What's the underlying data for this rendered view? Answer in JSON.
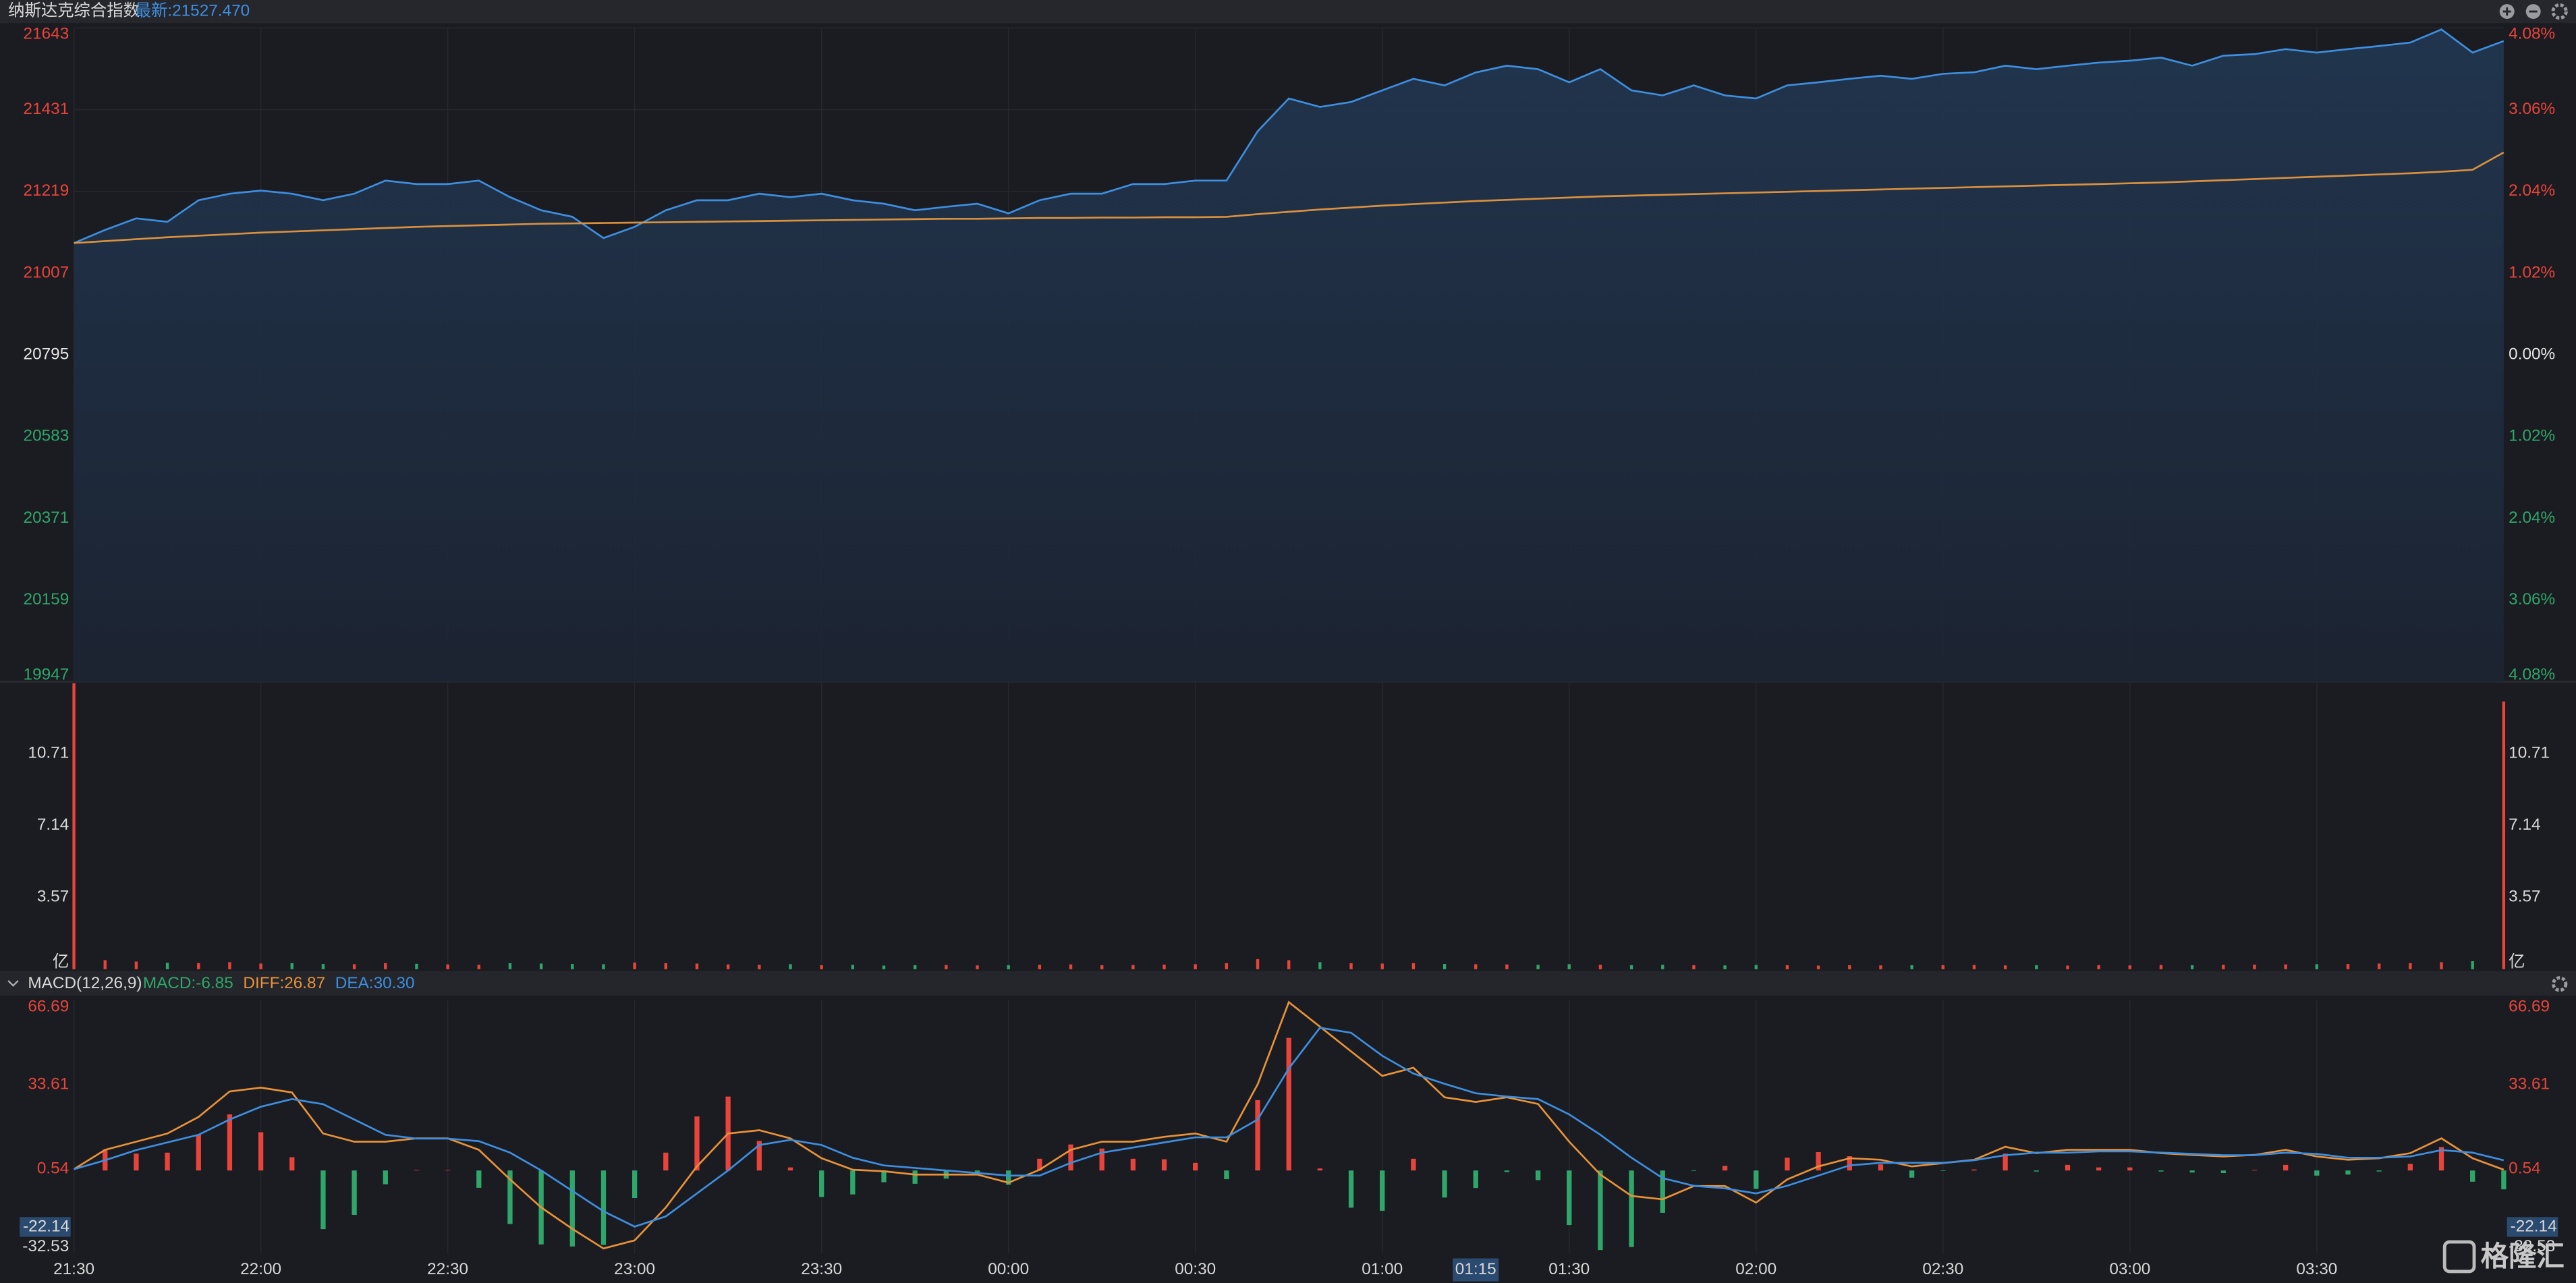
{
  "watermark": "格隆汇",
  "chart_data": [
    {
      "type": "area",
      "title": "纳斯达克综合指数",
      "latest": "最新:21527.470",
      "x": [
        "21:30",
        "21:35",
        "21:40",
        "21:45",
        "21:50",
        "21:55",
        "22:00",
        "22:05",
        "22:10",
        "22:15",
        "22:20",
        "22:25",
        "22:30",
        "22:35",
        "22:40",
        "22:45",
        "22:50",
        "22:55",
        "23:00",
        "23:05",
        "23:10",
        "23:15",
        "23:20",
        "23:25",
        "23:30",
        "23:35",
        "23:40",
        "23:45",
        "23:50",
        "23:55",
        "00:00",
        "00:05",
        "00:10",
        "00:15",
        "00:20",
        "00:25",
        "00:30",
        "00:35",
        "00:40",
        "00:45",
        "00:50",
        "00:55",
        "01:00",
        "01:05",
        "01:10",
        "01:15",
        "01:20",
        "01:25",
        "01:30",
        "01:35",
        "01:40",
        "01:45",
        "01:50",
        "01:55",
        "02:00",
        "02:05",
        "02:10",
        "02:15",
        "02:20",
        "02:25",
        "02:30",
        "02:35",
        "02:40",
        "02:45",
        "02:50",
        "02:55",
        "03:00",
        "03:05",
        "03:10",
        "03:15",
        "03:20",
        "03:25",
        "03:30",
        "03:35",
        "03:40",
        "03:45",
        "03:50",
        "03:55",
        "04:00"
      ],
      "series": [
        {
          "color": "#3e8ee0",
          "values": [
            21085,
            21119,
            21149,
            21140,
            21196,
            21213,
            21221,
            21213,
            21196,
            21213,
            21247,
            21238,
            21238,
            21247,
            21204,
            21170,
            21153,
            21098,
            21127,
            21170,
            21196,
            21196,
            21213,
            21204,
            21213,
            21196,
            21187,
            21170,
            21179,
            21187,
            21162,
            21196,
            21213,
            21213,
            21238,
            21238,
            21247,
            21247,
            21375,
            21460,
            21438,
            21451,
            21481,
            21511,
            21494,
            21527.47,
            21545,
            21536,
            21502,
            21536,
            21481,
            21468,
            21494,
            21468,
            21460,
            21494,
            21502,
            21511,
            21519,
            21511,
            21524,
            21528,
            21545,
            21536,
            21545,
            21553,
            21558,
            21566,
            21545,
            21571,
            21575,
            21588,
            21579,
            21588,
            21596,
            21605,
            21639,
            21579,
            21609
          ]
        },
        {
          "color": "#d9913f",
          "values": [
            21085,
            21090,
            21095,
            21100,
            21104,
            21108,
            21112,
            21115,
            21118,
            21121,
            21124,
            21127,
            21129,
            21131,
            21133,
            21135,
            21136,
            21137,
            21138,
            21139,
            21140,
            21141,
            21142,
            21143,
            21144,
            21145,
            21146,
            21147,
            21148,
            21148,
            21149,
            21150,
            21150,
            21151,
            21151,
            21152,
            21152,
            21153,
            21160,
            21166,
            21172,
            21177,
            21182,
            21186,
            21190,
            21194,
            21197,
            21200,
            21203,
            21206,
            21208,
            21210,
            21212,
            21214,
            21216,
            21218,
            21220,
            21222,
            21224,
            21226,
            21228,
            21230,
            21232,
            21234,
            21236,
            21238,
            21240,
            21242,
            21245,
            21248,
            21251,
            21254,
            21257,
            21260,
            21263,
            21266,
            21270,
            21275,
            21320
          ]
        }
      ],
      "ylim": [
        19947,
        21643
      ],
      "yticks": [
        21643,
        21431,
        21219,
        21007,
        20795,
        20583,
        20371,
        20159,
        19947
      ],
      "y2lim": [
        -4.08,
        4.08
      ],
      "y2ticks": [
        {
          "value": 4.08,
          "label": "4.08%"
        },
        {
          "value": 3.06,
          "label": "3.06%"
        },
        {
          "value": 2.04,
          "label": "2.04%"
        },
        {
          "value": 1.02,
          "label": "1.02%"
        },
        {
          "value": 0,
          "label": "0.00%"
        },
        {
          "value": -1.02,
          "label": "1.02%"
        },
        {
          "value": -2.04,
          "label": "2.04%"
        },
        {
          "value": -3.06,
          "label": "3.06%"
        },
        {
          "value": -4.08,
          "label": "4.08%"
        }
      ],
      "up_color": "#e8443b",
      "down_color": "#2fa66a",
      "grid": true
    },
    {
      "type": "bar",
      "values": [
        14.2,
        0.45,
        0.38,
        0.32,
        0.3,
        0.35,
        0.28,
        0.3,
        0.26,
        0.25,
        0.3,
        0.27,
        0.24,
        0.22,
        0.3,
        0.28,
        0.26,
        0.25,
        0.33,
        0.3,
        0.28,
        0.24,
        0.22,
        0.25,
        0.2,
        0.22,
        0.18,
        0.2,
        0.21,
        0.19,
        0.2,
        0.22,
        0.24,
        0.2,
        0.21,
        0.23,
        0.25,
        0.3,
        0.5,
        0.45,
        0.35,
        0.3,
        0.28,
        0.3,
        0.26,
        0.25,
        0.24,
        0.22,
        0.25,
        0.22,
        0.2,
        0.22,
        0.2,
        0.19,
        0.21,
        0.2,
        0.18,
        0.2,
        0.19,
        0.2,
        0.2,
        0.21,
        0.19,
        0.2,
        0.18,
        0.2,
        0.19,
        0.21,
        0.2,
        0.22,
        0.23,
        0.24,
        0.25,
        0.26,
        0.28,
        0.3,
        0.35,
        0.4,
        13.3
      ],
      "ylim": [
        0,
        14.28
      ],
      "yticks": [
        10.71,
        7.14,
        3.57,
        {
          "value": 0,
          "label": "亿"
        }
      ],
      "up_color": "#e8443b",
      "down_color": "#2fa66a"
    },
    {
      "type": "combo",
      "title": "MACD(12,26,9)",
      "series": [
        {
          "name": "MACD:-6.85",
          "kind": "bar",
          "up_color": "#e8443b",
          "down_color": "#2fa66a",
          "color": "#2fa66a",
          "values": [
            0,
            8.2,
            6.6,
            7,
            14,
            22,
            15,
            5.2,
            -23,
            -17.4,
            -5.4,
            0.2,
            0.2,
            -6.8,
            -21,
            -29,
            -29.8,
            -29.2,
            -10.8,
            7,
            21.2,
            29,
            11.6,
            1.2,
            -10.4,
            -9.4,
            -4.6,
            -5.2,
            -3.2,
            -1.2,
            -5.6,
            4.6,
            10.2,
            8.6,
            4.6,
            4.4,
            3,
            -3.4,
            27.6,
            52,
            0.8,
            -14.6,
            -15.8,
            4.6,
            -10.6,
            -6.85,
            -0.6,
            -3.8,
            -21.4,
            -31.2,
            -30,
            -16.6,
            -0.2,
            1.8,
            -7.2,
            5,
            7.2,
            5.6,
            2.4,
            -2.8,
            -0.2,
            0.4,
            6.6,
            -0.4,
            2.2,
            1.2,
            1.2,
            -0.4,
            -0.8,
            -1,
            0.2,
            2.2,
            -2,
            -1.6,
            -0.4,
            2.6,
            9.2,
            -4.4,
            -7.4
          ]
        },
        {
          "name": "DIFF:26.87",
          "kind": "line",
          "color": "#e8923a",
          "values": [
            0.5,
            8.1,
            11.3,
            14.5,
            21,
            31,
            32.5,
            30.6,
            14.5,
            11.3,
            11.3,
            12.6,
            12.6,
            8.1,
            -3.5,
            -14.5,
            -22.9,
            -30.6,
            -27.4,
            -14.5,
            1.6,
            14.5,
            15.8,
            12.6,
            4.8,
            0.3,
            -0.3,
            -1.6,
            -1.6,
            -1.6,
            -4.8,
            0.3,
            8.1,
            11.3,
            11.3,
            13.2,
            14.5,
            11.3,
            33.8,
            66,
            56.4,
            46.7,
            37.1,
            40.3,
            28.7,
            26.87,
            28.7,
            26.1,
            11.3,
            -1.6,
            -10,
            -11.3,
            -6.1,
            -6.1,
            -12.6,
            -3.5,
            1.6,
            4.8,
            4.2,
            1.6,
            2.9,
            4.2,
            9.3,
            6.8,
            8.1,
            8.1,
            8.1,
            6.8,
            6.1,
            5.5,
            6.1,
            8.1,
            5.5,
            4.2,
            4.8,
            6.8,
            12.6,
            4.8,
            0.3
          ]
        },
        {
          "name": "DEA:30.30",
          "kind": "line",
          "color": "#3e8ee0",
          "values": [
            0.5,
            4,
            8,
            11,
            14,
            20,
            25,
            28,
            26,
            20,
            14,
            12.5,
            12.5,
            11.5,
            7,
            0,
            -8,
            -16,
            -22,
            -18,
            -9,
            0,
            10,
            12,
            10,
            5,
            2,
            1,
            0,
            -1,
            -2,
            -2,
            3,
            7,
            9,
            11,
            13,
            13,
            20,
            40,
            56,
            54,
            45,
            38,
            34,
            30.3,
            29,
            28,
            22,
            14,
            5,
            -3,
            -6,
            -7,
            -9,
            -6,
            -2,
            2,
            3,
            3,
            3,
            4,
            6,
            7,
            7,
            7.5,
            7.5,
            7,
            6.5,
            6,
            6,
            7,
            6.5,
            5,
            5,
            5.5,
            8,
            7,
            4
          ]
        }
      ],
      "ylim": [
        -32.53,
        66.69
      ],
      "yticks": [
        66.69,
        33.61,
        0.54,
        -32.53
      ],
      "cursor_y": -22.14,
      "xticks": [
        "21:30",
        "22:00",
        "22:30",
        "23:00",
        "23:30",
        "00:00",
        "00:30",
        "01:00",
        "01:30",
        "02:00",
        "02:30",
        "03:00",
        "03:30"
      ],
      "cursor_x": "01:15"
    }
  ]
}
